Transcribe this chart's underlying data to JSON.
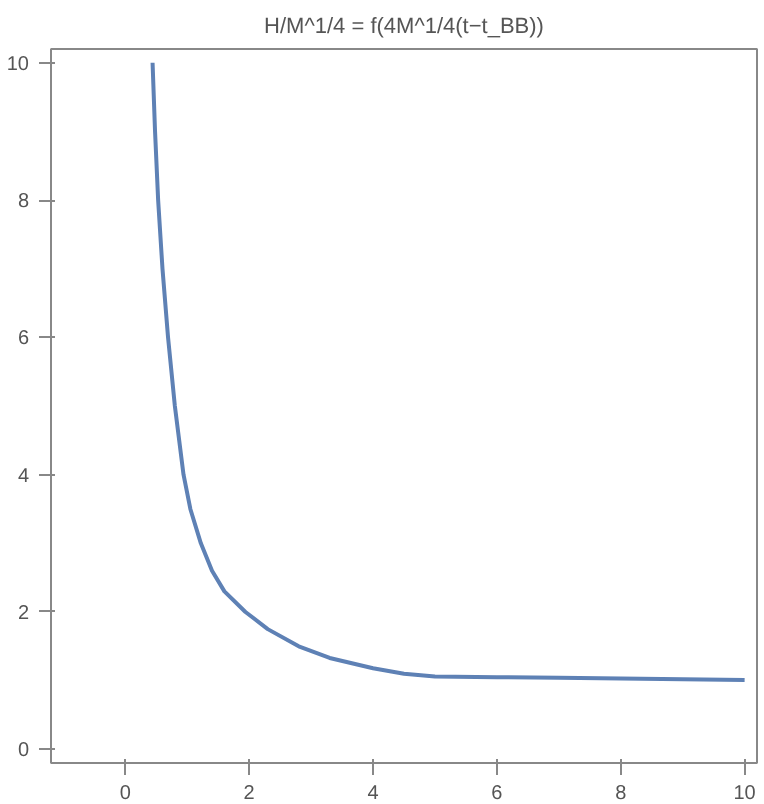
{
  "chart_data": {
    "type": "line",
    "title": "H/M^1/4 = f(4M^1/4(t−t_BB))",
    "x": [
      0.44,
      0.48,
      0.53,
      0.6,
      0.69,
      0.8,
      0.94,
      1.05,
      1.22,
      1.4,
      1.6,
      1.94,
      2.3,
      2.8,
      3.3,
      4.0,
      4.5,
      5.0,
      6.0,
      7.0,
      8.0,
      9.0,
      10.0
    ],
    "series": [
      {
        "color": "#5e81b5",
        "values": [
          10,
          9,
          8,
          7,
          6,
          5,
          4,
          3.5,
          3,
          2.6,
          2.3,
          2,
          1.75,
          1.5,
          1.33,
          1.18,
          1.1,
          1.06,
          1.05,
          1.04,
          1.03,
          1.02,
          1.01
        ]
      }
    ],
    "xlim": [
      -1.2,
      10.2
    ],
    "ylim": [
      -0.2,
      10.2
    ],
    "xticks": [
      0,
      2,
      4,
      6,
      8,
      10
    ],
    "yticks": [
      0,
      2,
      4,
      6,
      8,
      10
    ],
    "grid": false
  }
}
